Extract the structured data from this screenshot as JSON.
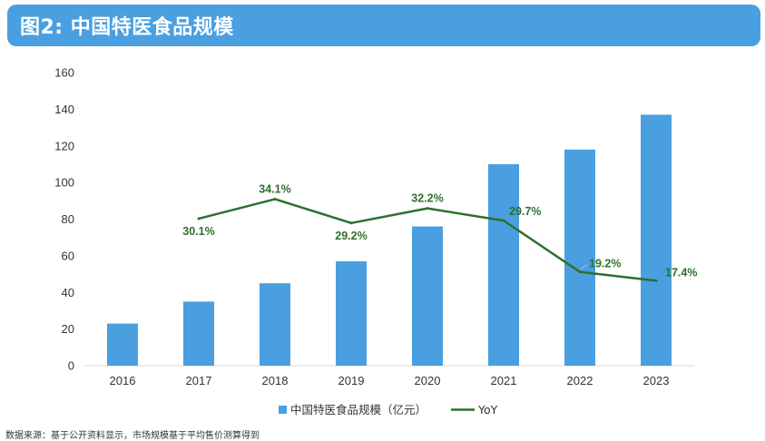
{
  "header": {
    "title": "图2: 中国特医食品规模"
  },
  "chart_data": {
    "type": "bar",
    "title": "图2: 中国特医食品规模",
    "categories": [
      "2016",
      "2017",
      "2018",
      "2019",
      "2020",
      "2021",
      "2022",
      "2023"
    ],
    "ylim": [
      0,
      160
    ],
    "yticks": [
      0,
      20,
      40,
      60,
      80,
      100,
      120,
      140,
      160
    ],
    "xlabel": "",
    "ylabel": "",
    "grid": false,
    "legend_position": "bottom",
    "series": [
      {
        "name": "中国特医食品规模（亿元）",
        "type": "bar",
        "color": "#4a9fe0",
        "values": [
          23,
          35,
          45,
          57,
          76,
          110,
          118,
          137
        ]
      },
      {
        "name": "YoY",
        "type": "line",
        "color": "#2e6f2e",
        "secondary_axis_range": [
          0,
          0.6
        ],
        "values": [
          null,
          0.301,
          0.341,
          0.292,
          0.322,
          0.297,
          0.192,
          0.174
        ],
        "labels": [
          null,
          "30.1%",
          "34.1%",
          "29.2%",
          "32.2%",
          "29.7%",
          "19.2%",
          "17.4%"
        ]
      }
    ]
  },
  "footnote": "数据来源：基于公开资料显示，市场规模基于平均售价测算得到"
}
